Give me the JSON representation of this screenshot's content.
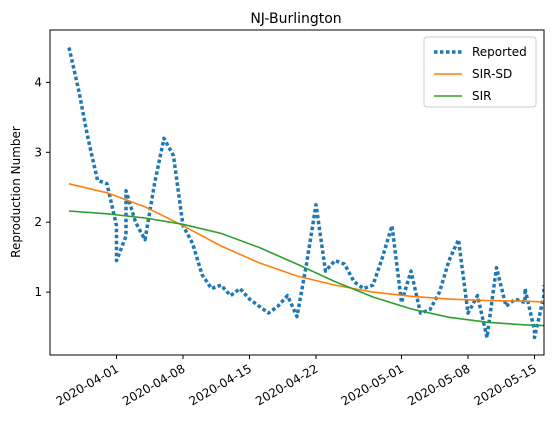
{
  "chart_data": {
    "type": "line",
    "title": "NJ-Burlington",
    "xlabel": "",
    "ylabel": "Reproduction Number",
    "x_ticks": [
      "2020-04-01",
      "2020-04-08",
      "2020-04-15",
      "2020-04-22",
      "2020-05-01",
      "2020-05-08",
      "2020-05-15"
    ],
    "y_ticks": [
      "1",
      "2",
      "3",
      "4"
    ],
    "xlim": [
      "2020-03-25",
      "2020-05-16"
    ],
    "ylim": [
      0.1,
      4.75
    ],
    "grid": false,
    "legend_position": "top-right",
    "series": [
      {
        "name": "Reported",
        "color": "#1f77b4",
        "style": "dotted",
        "points": [
          [
            "2020-03-27",
            4.5
          ],
          [
            "2020-03-28",
            3.9
          ],
          [
            "2020-03-29",
            3.2
          ],
          [
            "2020-03-30",
            2.6
          ],
          [
            "2020-03-31",
            2.55
          ],
          [
            "2020-04-01",
            1.95
          ],
          [
            "2020-04-01",
            1.45
          ],
          [
            "2020-04-02",
            1.8
          ],
          [
            "2020-04-02",
            2.45
          ],
          [
            "2020-04-03",
            2.0
          ],
          [
            "2020-04-04",
            1.75
          ],
          [
            "2020-04-05",
            2.55
          ],
          [
            "2020-04-06",
            3.2
          ],
          [
            "2020-04-07",
            2.95
          ],
          [
            "2020-04-08",
            1.95
          ],
          [
            "2020-04-09",
            1.7
          ],
          [
            "2020-04-10",
            1.25
          ],
          [
            "2020-04-11",
            1.05
          ],
          [
            "2020-04-12",
            1.1
          ],
          [
            "2020-04-13",
            0.95
          ],
          [
            "2020-04-14",
            1.05
          ],
          [
            "2020-04-15",
            0.9
          ],
          [
            "2020-04-16",
            0.8
          ],
          [
            "2020-04-17",
            0.7
          ],
          [
            "2020-04-18",
            0.8
          ],
          [
            "2020-04-19",
            0.95
          ],
          [
            "2020-04-20",
            0.65
          ],
          [
            "2020-04-21",
            1.4
          ],
          [
            "2020-04-22",
            2.25
          ],
          [
            "2020-04-23",
            1.3
          ],
          [
            "2020-04-24",
            1.45
          ],
          [
            "2020-04-25",
            1.4
          ],
          [
            "2020-04-26",
            1.15
          ],
          [
            "2020-04-27",
            1.05
          ],
          [
            "2020-04-28",
            1.1
          ],
          [
            "2020-04-29",
            1.5
          ],
          [
            "2020-04-30",
            1.95
          ],
          [
            "2020-05-01",
            0.85
          ],
          [
            "2020-05-02",
            1.3
          ],
          [
            "2020-05-03",
            0.7
          ],
          [
            "2020-05-04",
            0.75
          ],
          [
            "2020-05-05",
            1.0
          ],
          [
            "2020-05-06",
            1.45
          ],
          [
            "2020-05-07",
            1.75
          ],
          [
            "2020-05-08",
            0.7
          ],
          [
            "2020-05-09",
            0.95
          ],
          [
            "2020-05-10",
            0.35
          ],
          [
            "2020-05-11",
            1.35
          ],
          [
            "2020-05-12",
            0.8
          ],
          [
            "2020-05-13",
            0.9
          ],
          [
            "2020-05-14",
            0.85
          ],
          [
            "2020-05-14",
            1.05
          ],
          [
            "2020-05-15",
            0.45
          ],
          [
            "2020-05-15",
            0.35
          ],
          [
            "2020-05-16",
            0.95
          ],
          [
            "2020-05-16",
            1.1
          ]
        ]
      },
      {
        "name": "SIR-SD",
        "color": "#ff7f0e",
        "style": "solid",
        "points": [
          [
            "2020-03-27",
            2.55
          ],
          [
            "2020-03-31",
            2.42
          ],
          [
            "2020-04-04",
            2.22
          ],
          [
            "2020-04-08",
            1.95
          ],
          [
            "2020-04-12",
            1.66
          ],
          [
            "2020-04-16",
            1.42
          ],
          [
            "2020-04-20",
            1.23
          ],
          [
            "2020-04-24",
            1.1
          ],
          [
            "2020-04-28",
            1.0
          ],
          [
            "2020-05-02",
            0.94
          ],
          [
            "2020-05-06",
            0.9
          ],
          [
            "2020-05-10",
            0.88
          ],
          [
            "2020-05-14",
            0.87
          ],
          [
            "2020-05-16",
            0.86
          ]
        ]
      },
      {
        "name": "SIR",
        "color": "#2ca02c",
        "style": "solid",
        "points": [
          [
            "2020-03-27",
            2.16
          ],
          [
            "2020-03-31",
            2.12
          ],
          [
            "2020-04-04",
            2.06
          ],
          [
            "2020-04-08",
            1.97
          ],
          [
            "2020-04-12",
            1.84
          ],
          [
            "2020-04-16",
            1.64
          ],
          [
            "2020-04-20",
            1.4
          ],
          [
            "2020-04-24",
            1.15
          ],
          [
            "2020-04-28",
            0.93
          ],
          [
            "2020-05-02",
            0.76
          ],
          [
            "2020-05-06",
            0.64
          ],
          [
            "2020-05-10",
            0.57
          ],
          [
            "2020-05-14",
            0.53
          ],
          [
            "2020-05-16",
            0.52
          ]
        ]
      }
    ]
  }
}
